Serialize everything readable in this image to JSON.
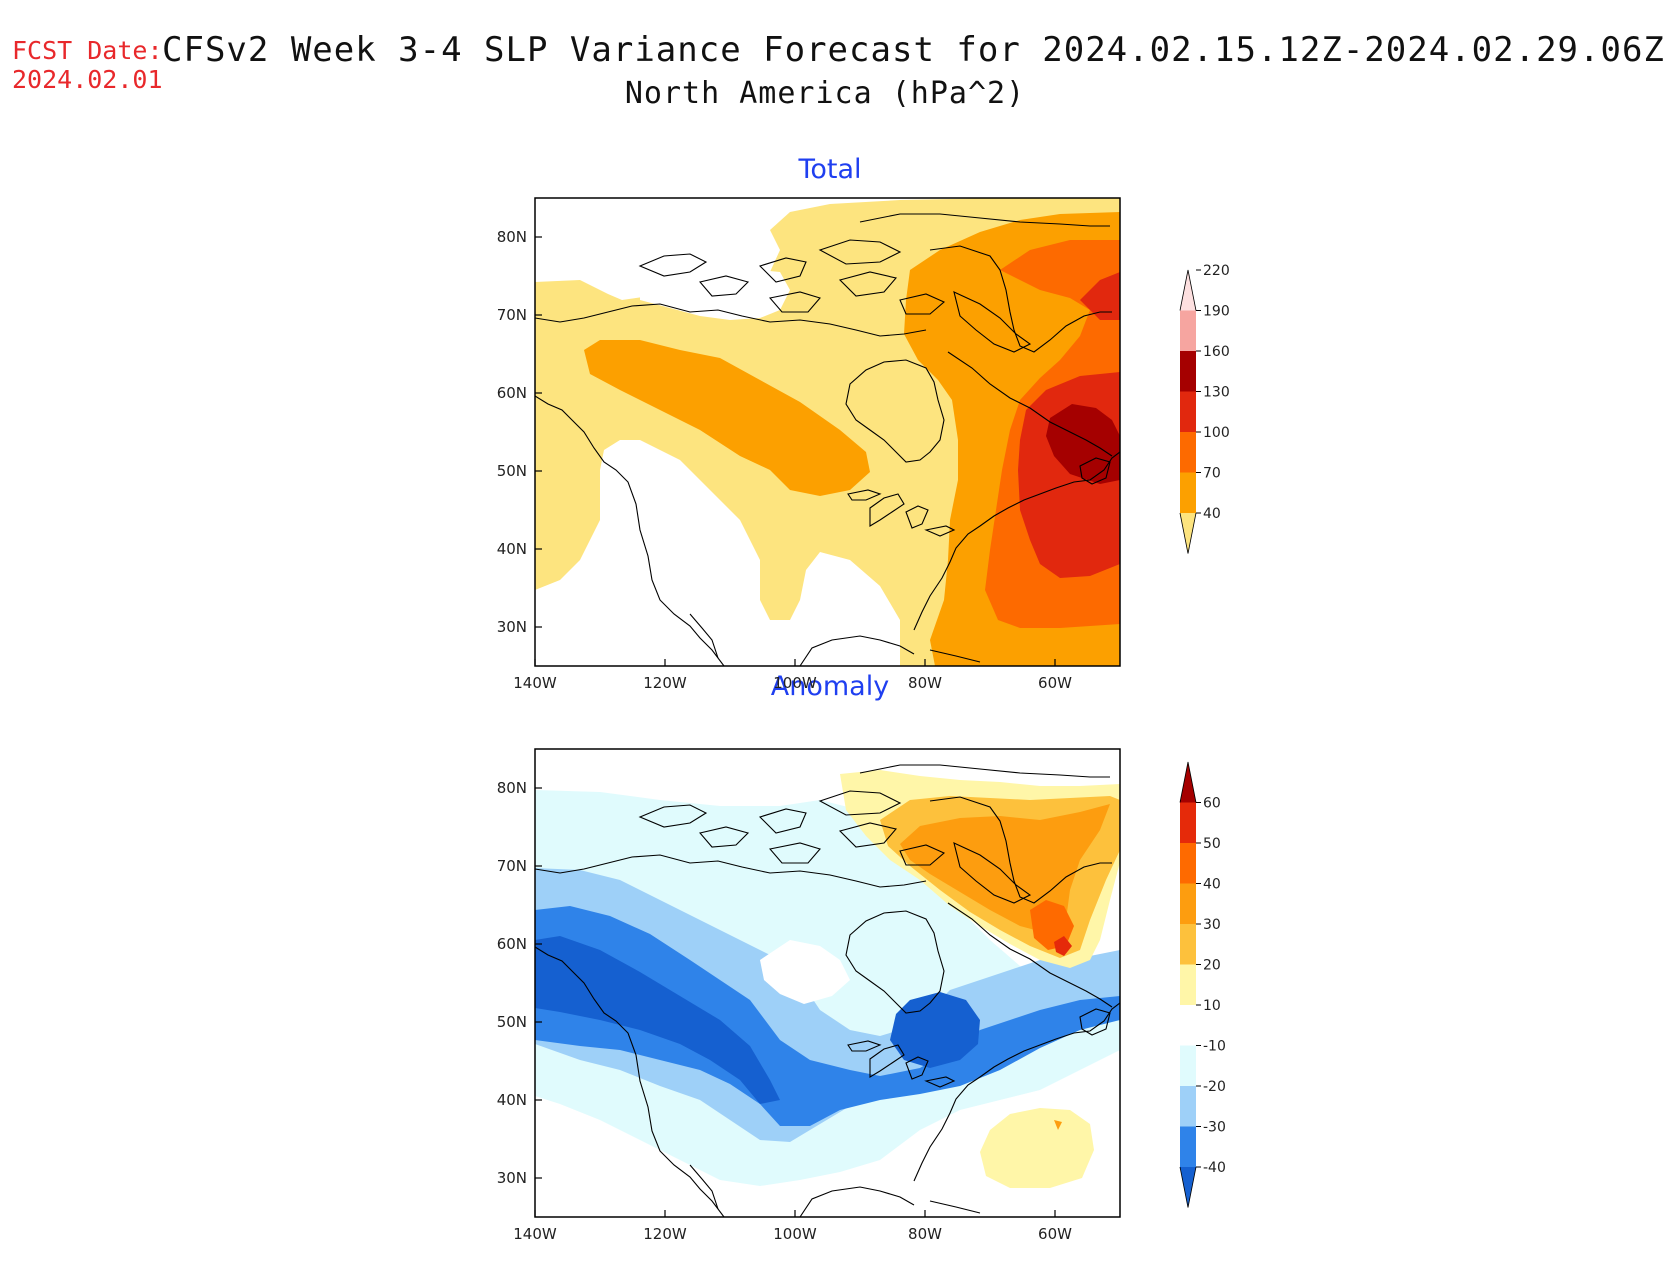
{
  "header": {
    "fcst_label": "FCST Date:",
    "fcst_date": "2024.02.01",
    "title": "CFSv2 Week 3-4 SLP Variance Forecast for 2024.02.15.12Z-2024.02.29.06Z",
    "subtitle": "North America (hPa^2)"
  },
  "axes": {
    "lat_ticks": [
      "80N",
      "70N",
      "60N",
      "50N",
      "40N",
      "30N"
    ],
    "lon_ticks": [
      "140W",
      "120W",
      "100W",
      "80W",
      "60W"
    ]
  },
  "panels": [
    {
      "title": "Total",
      "colorbar": {
        "levels": [
          "40",
          "70",
          "100",
          "130",
          "160",
          "190",
          "220"
        ],
        "colors": [
          "#fde47f",
          "#fca000",
          "#fd6a00",
          "#e1280e",
          "#a50000",
          "#f6a5a0",
          "#fde0e0"
        ]
      }
    },
    {
      "title": "Anomaly",
      "colorbar": {
        "levels": [
          "-40",
          "-30",
          "-20",
          "-10",
          "10",
          "20",
          "30",
          "40",
          "50",
          "60"
        ],
        "colors": [
          "#1560d0",
          "#2f83e9",
          "#9ed0f8",
          "#e0fbfd",
          "#ffffff",
          "#fff6a8",
          "#fdc13c",
          "#fd9d0f",
          "#fe6a00",
          "#e52a0a",
          "#a50000"
        ]
      }
    }
  ]
}
